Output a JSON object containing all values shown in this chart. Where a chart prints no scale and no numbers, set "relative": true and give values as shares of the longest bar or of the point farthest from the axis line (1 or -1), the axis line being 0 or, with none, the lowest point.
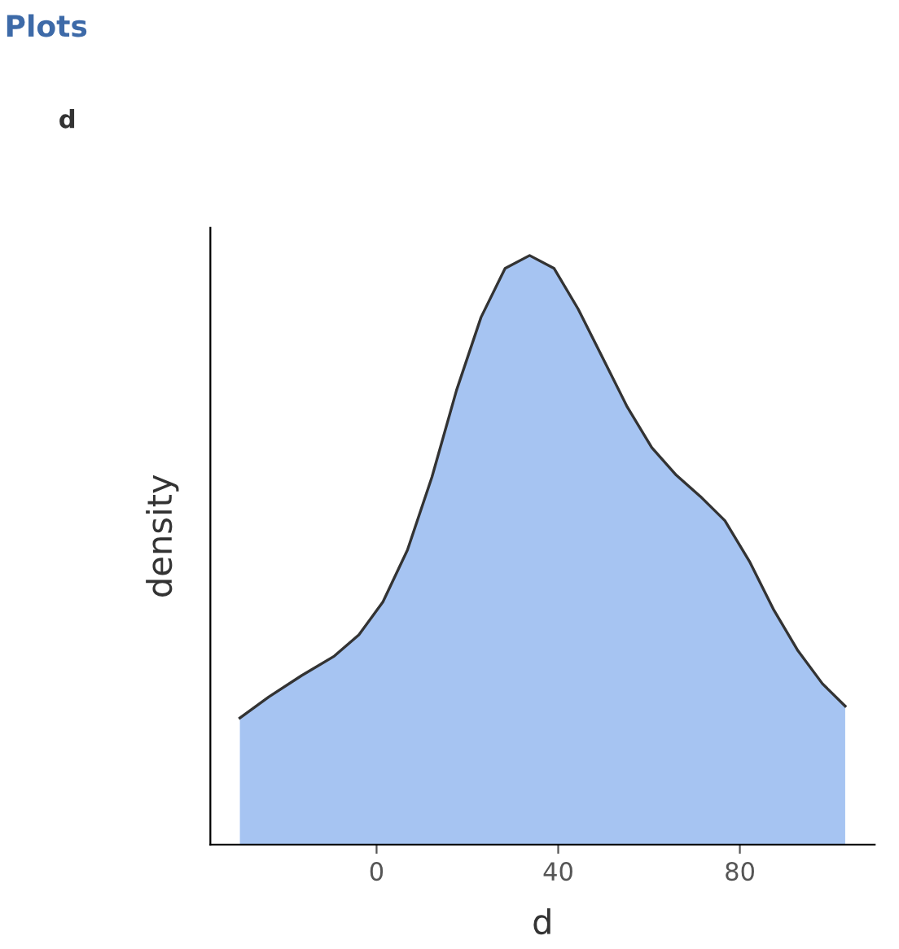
{
  "chart_data": {
    "type": "area",
    "title": "Plots",
    "subtitle": "d",
    "xlabel": "d",
    "ylabel": "density",
    "relative": true,
    "x": [
      -30.1,
      -23.7,
      -16.5,
      -9.3,
      -3.9,
      1.4,
      6.8,
      12.2,
      17.6,
      23.0,
      28.3,
      33.7,
      39.1,
      44.4,
      49.8,
      55.2,
      60.6,
      66.0,
      71.3,
      76.7,
      82.1,
      87.5,
      92.8,
      98.2,
      103.2
    ],
    "series": [
      {
        "color": "#a6c4f2",
        "values": [
          0.215,
          0.251,
          0.287,
          0.32,
          0.356,
          0.412,
          0.5,
          0.624,
          0.771,
          0.895,
          0.978,
          1.0,
          0.978,
          0.909,
          0.826,
          0.743,
          0.674,
          0.627,
          0.591,
          0.55,
          0.481,
          0.398,
          0.329,
          0.273,
          0.235
        ]
      }
    ],
    "xlim": [
      -36.6,
      109.7
    ],
    "xticks": [
      0,
      40,
      80
    ],
    "grid": false
  }
}
